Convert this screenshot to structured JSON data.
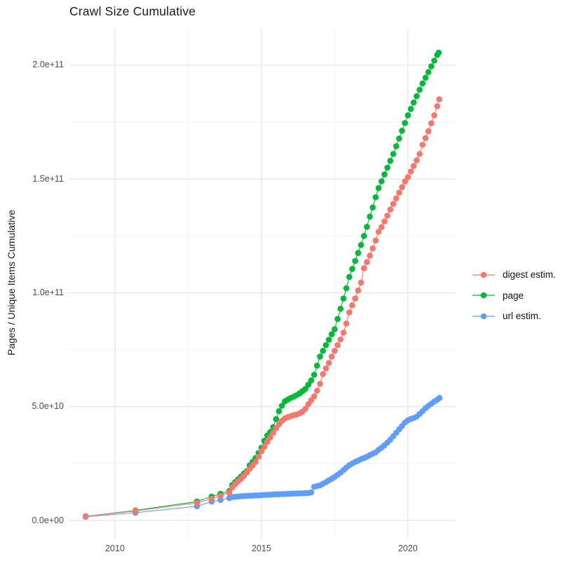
{
  "title": "Crawl Size Cumulative",
  "chart_data": {
    "type": "line",
    "title": "Crawl Size Cumulative",
    "xlabel": "",
    "ylabel": "Pages / Unique Items Cumulative",
    "value_unit": "billions (1e9)",
    "xlim": [
      2008.42,
      2021.63
    ],
    "ylim_billions": [
      -8,
      215.7
    ],
    "x_ticks": {
      "values": [
        2010,
        2015,
        2020
      ],
      "labels": [
        "2010",
        "2015",
        "2020"
      ]
    },
    "y_ticks": {
      "values_billions": [
        0,
        50,
        100,
        150,
        200
      ],
      "labels": [
        "0.0e+00",
        "5.0e+10",
        "1.0e+11",
        "1.5e+11",
        "2.0e+11"
      ]
    },
    "x_minor_ticks": [
      2012.5,
      2017.5
    ],
    "y_minor_ticks_billions": [
      25,
      75,
      125,
      175
    ],
    "grid": {
      "major_color": "#e5e5e5",
      "minor_color": "#f2f2f2",
      "background": "#ffffff"
    },
    "legend_position": "right",
    "marker": "point-on-line",
    "draw_order": [
      "url estim.",
      "page",
      "digest estim."
    ],
    "series": [
      {
        "name": "digest estim.",
        "color": "#F8766D",
        "points": [
          [
            2009.0,
            1.7
          ],
          [
            2010.7,
            4.2
          ],
          [
            2012.8,
            7.7
          ],
          [
            2013.3,
            9.5
          ],
          [
            2013.6,
            10.8
          ],
          [
            2013.9,
            12.2
          ],
          [
            2014.0,
            14.5
          ],
          [
            2014.1,
            15.9
          ],
          [
            2014.2,
            17.1
          ],
          [
            2014.3,
            18.3
          ],
          [
            2014.4,
            19.6
          ],
          [
            2014.5,
            21.1
          ],
          [
            2014.6,
            22.7
          ],
          [
            2014.7,
            24.2
          ],
          [
            2014.8,
            25.7
          ],
          [
            2014.9,
            28.0
          ],
          [
            2015.0,
            30.4
          ],
          [
            2015.1,
            32.4
          ],
          [
            2015.2,
            34.5
          ],
          [
            2015.3,
            36.5
          ],
          [
            2015.4,
            38.5
          ],
          [
            2015.5,
            40.5
          ],
          [
            2015.6,
            42.2
          ],
          [
            2015.7,
            43.8
          ],
          [
            2015.8,
            44.8
          ],
          [
            2015.9,
            45.4
          ],
          [
            2016.0,
            45.8
          ],
          [
            2016.1,
            46.2
          ],
          [
            2016.2,
            46.5
          ],
          [
            2016.3,
            47.0
          ],
          [
            2016.4,
            47.8
          ],
          [
            2016.5,
            49.0
          ],
          [
            2016.6,
            51.0
          ],
          [
            2016.7,
            52.8
          ],
          [
            2016.8,
            54.5
          ],
          [
            2016.9,
            57.0
          ],
          [
            2017.0,
            60.0
          ],
          [
            2017.1,
            64.3
          ],
          [
            2017.2,
            66.8
          ],
          [
            2017.3,
            69.2
          ],
          [
            2017.4,
            72.0
          ],
          [
            2017.5,
            74.5
          ],
          [
            2017.6,
            77.0
          ],
          [
            2017.7,
            79.5
          ],
          [
            2017.8,
            82.5
          ],
          [
            2017.9,
            86.5
          ],
          [
            2018.0,
            91.4
          ],
          [
            2018.1,
            94.5
          ],
          [
            2018.2,
            97.5
          ],
          [
            2018.3,
            101.0
          ],
          [
            2018.4,
            104.5
          ],
          [
            2018.5,
            110.8
          ],
          [
            2018.6,
            113.5
          ],
          [
            2018.7,
            116.3
          ],
          [
            2018.8,
            119.5
          ],
          [
            2018.9,
            123.0
          ],
          [
            2019.0,
            126.8
          ],
          [
            2019.1,
            128.9
          ],
          [
            2019.2,
            131.4
          ],
          [
            2019.3,
            133.9
          ],
          [
            2019.4,
            136.6
          ],
          [
            2019.5,
            139.1
          ],
          [
            2019.6,
            141.5
          ],
          [
            2019.7,
            144.0
          ],
          [
            2019.8,
            146.4
          ],
          [
            2019.9,
            148.9
          ],
          [
            2020.0,
            150.8
          ],
          [
            2020.1,
            153.3
          ],
          [
            2020.2,
            155.7
          ],
          [
            2020.3,
            158.2
          ],
          [
            2020.4,
            161.0
          ],
          [
            2020.5,
            165.0
          ],
          [
            2020.6,
            168.0
          ],
          [
            2020.7,
            171.0
          ],
          [
            2020.8,
            174.5
          ],
          [
            2020.9,
            178.0
          ],
          [
            2021.0,
            182.0
          ],
          [
            2021.07,
            185.0
          ]
        ]
      },
      {
        "name": "page",
        "color": "#00BA38",
        "points": [
          [
            2009.0,
            1.8
          ],
          [
            2010.7,
            4.4
          ],
          [
            2012.8,
            8.3
          ],
          [
            2013.3,
            10.5
          ],
          [
            2013.6,
            11.7
          ],
          [
            2013.9,
            12.9
          ],
          [
            2014.0,
            15.5
          ],
          [
            2014.1,
            16.8
          ],
          [
            2014.2,
            18.0
          ],
          [
            2014.3,
            19.3
          ],
          [
            2014.4,
            20.6
          ],
          [
            2014.5,
            21.6
          ],
          [
            2014.6,
            24.2
          ],
          [
            2014.7,
            25.7
          ],
          [
            2014.8,
            27.4
          ],
          [
            2014.9,
            29.6
          ],
          [
            2015.0,
            31.9
          ],
          [
            2015.1,
            35.0
          ],
          [
            2015.2,
            37.3
          ],
          [
            2015.3,
            38.8
          ],
          [
            2015.4,
            41.0
          ],
          [
            2015.5,
            44.5
          ],
          [
            2015.6,
            48.0
          ],
          [
            2015.7,
            50.4
          ],
          [
            2015.8,
            52.3
          ],
          [
            2015.9,
            53.1
          ],
          [
            2016.0,
            53.8
          ],
          [
            2016.1,
            54.4
          ],
          [
            2016.2,
            55.0
          ],
          [
            2016.3,
            55.8
          ],
          [
            2016.4,
            56.8
          ],
          [
            2016.5,
            57.8
          ],
          [
            2016.6,
            59.6
          ],
          [
            2016.7,
            61.5
          ],
          [
            2016.8,
            64.0
          ],
          [
            2016.9,
            68.0
          ],
          [
            2017.0,
            72.0
          ],
          [
            2017.1,
            74.5
          ],
          [
            2017.2,
            77.0
          ],
          [
            2017.3,
            79.4
          ],
          [
            2017.4,
            81.8
          ],
          [
            2017.5,
            84.0
          ],
          [
            2017.6,
            88.5
          ],
          [
            2017.7,
            93.0
          ],
          [
            2017.8,
            97.5
          ],
          [
            2017.9,
            102.0
          ],
          [
            2018.0,
            107.0
          ],
          [
            2018.1,
            110.5
          ],
          [
            2018.2,
            114.0
          ],
          [
            2018.3,
            117.5
          ],
          [
            2018.4,
            121.0
          ],
          [
            2018.5,
            125.0
          ],
          [
            2018.6,
            129.0
          ],
          [
            2018.7,
            133.5
          ],
          [
            2018.8,
            137.5
          ],
          [
            2018.9,
            142.0
          ],
          [
            2019.0,
            146.0
          ],
          [
            2019.1,
            149.0
          ],
          [
            2019.2,
            152.0
          ],
          [
            2019.3,
            155.0
          ],
          [
            2019.4,
            158.0
          ],
          [
            2019.5,
            161.0
          ],
          [
            2019.6,
            164.4
          ],
          [
            2019.7,
            167.8
          ],
          [
            2019.8,
            171.2
          ],
          [
            2019.9,
            174.6
          ],
          [
            2020.0,
            178.0
          ],
          [
            2020.1,
            180.8
          ],
          [
            2020.2,
            183.6
          ],
          [
            2020.3,
            186.4
          ],
          [
            2020.4,
            189.2
          ],
          [
            2020.5,
            192.0
          ],
          [
            2020.6,
            194.5
          ],
          [
            2020.7,
            197.0
          ],
          [
            2020.8,
            199.5
          ],
          [
            2020.9,
            202.0
          ],
          [
            2021.0,
            204.5
          ],
          [
            2021.05,
            205.5
          ]
        ]
      },
      {
        "name": "url estim.",
        "color": "#619CFF",
        "points": [
          [
            2009.0,
            1.6
          ],
          [
            2010.7,
            3.4
          ],
          [
            2012.8,
            6.2
          ],
          [
            2013.3,
            8.3
          ],
          [
            2013.6,
            9.0
          ],
          [
            2013.9,
            9.8
          ],
          [
            2014.0,
            10.3
          ],
          [
            2014.1,
            10.4
          ],
          [
            2014.2,
            10.5
          ],
          [
            2014.3,
            10.6
          ],
          [
            2014.4,
            10.7
          ],
          [
            2014.5,
            10.8
          ],
          [
            2014.6,
            10.9
          ],
          [
            2014.7,
            10.9
          ],
          [
            2014.8,
            11.0
          ],
          [
            2014.9,
            11.0
          ],
          [
            2015.0,
            11.1
          ],
          [
            2015.1,
            11.2
          ],
          [
            2015.2,
            11.3
          ],
          [
            2015.3,
            11.3
          ],
          [
            2015.4,
            11.4
          ],
          [
            2015.5,
            11.5
          ],
          [
            2015.6,
            11.5
          ],
          [
            2015.7,
            11.6
          ],
          [
            2015.8,
            11.6
          ],
          [
            2015.9,
            11.7
          ],
          [
            2016.0,
            11.7
          ],
          [
            2016.1,
            11.8
          ],
          [
            2016.2,
            11.8
          ],
          [
            2016.3,
            11.9
          ],
          [
            2016.4,
            11.9
          ],
          [
            2016.5,
            12.0
          ],
          [
            2016.6,
            12.1
          ],
          [
            2016.7,
            12.3
          ],
          [
            2016.8,
            14.8
          ],
          [
            2016.9,
            15.1
          ],
          [
            2017.0,
            15.4
          ],
          [
            2017.1,
            16.1
          ],
          [
            2017.2,
            16.8
          ],
          [
            2017.3,
            17.6
          ],
          [
            2017.4,
            18.3
          ],
          [
            2017.5,
            19.1
          ],
          [
            2017.6,
            20.0
          ],
          [
            2017.7,
            21.0
          ],
          [
            2017.8,
            22.1
          ],
          [
            2017.9,
            23.2
          ],
          [
            2018.0,
            24.3
          ],
          [
            2018.1,
            25.0
          ],
          [
            2018.2,
            25.7
          ],
          [
            2018.3,
            26.3
          ],
          [
            2018.4,
            26.9
          ],
          [
            2018.5,
            27.4
          ],
          [
            2018.6,
            28.0
          ],
          [
            2018.7,
            28.7
          ],
          [
            2018.8,
            29.3
          ],
          [
            2018.9,
            29.9
          ],
          [
            2019.0,
            31.0
          ],
          [
            2019.1,
            32.0
          ],
          [
            2019.2,
            33.0
          ],
          [
            2019.3,
            34.2
          ],
          [
            2019.4,
            35.5
          ],
          [
            2019.5,
            37.0
          ],
          [
            2019.6,
            38.5
          ],
          [
            2019.7,
            40.0
          ],
          [
            2019.8,
            41.5
          ],
          [
            2019.9,
            43.0
          ],
          [
            2020.0,
            44.0
          ],
          [
            2020.1,
            44.6
          ],
          [
            2020.2,
            45.0
          ],
          [
            2020.3,
            45.6
          ],
          [
            2020.4,
            46.8
          ],
          [
            2020.5,
            48.0
          ],
          [
            2020.6,
            49.3
          ],
          [
            2020.7,
            50.3
          ],
          [
            2020.8,
            51.3
          ],
          [
            2020.9,
            52.2
          ],
          [
            2021.0,
            53.0
          ],
          [
            2021.08,
            53.8
          ]
        ]
      }
    ]
  }
}
